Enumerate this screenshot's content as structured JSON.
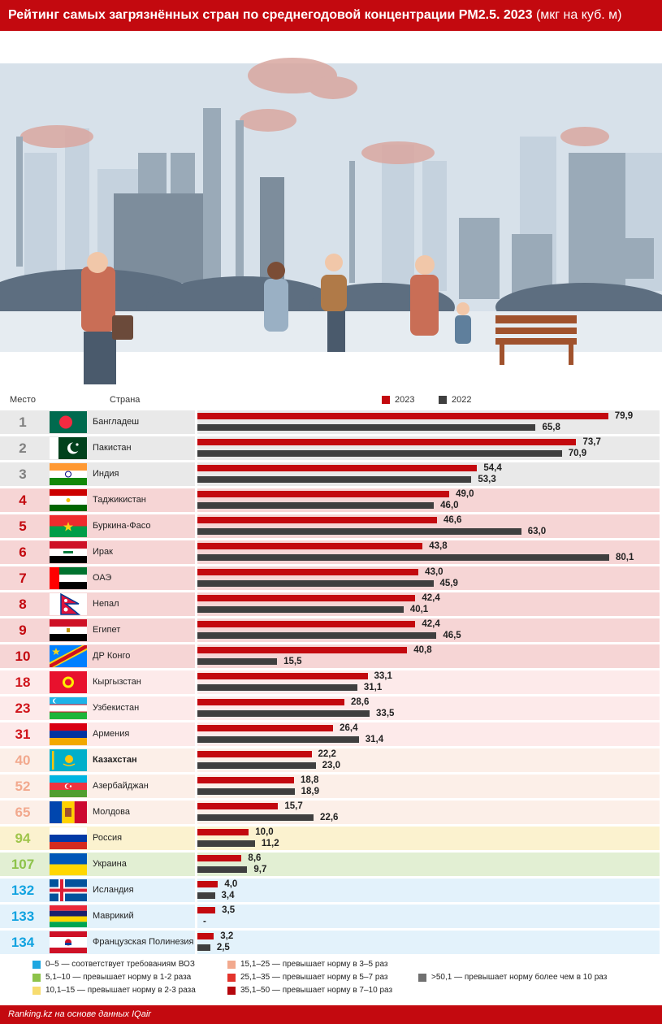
{
  "header": {
    "title": "Рейтинг самых загрязнённых стран по среднегодовой концентрации PM2.5. 2023",
    "unit": "(мкг на куб. м)"
  },
  "columns": {
    "place": "Место",
    "country": "Страна"
  },
  "colors": {
    "accent": "#c3090f",
    "bar2023": "#c3090f",
    "bar2022": "#3f3f3f"
  },
  "chart_data": {
    "type": "bar",
    "orientation": "horizontal",
    "series": [
      {
        "name": "2023",
        "values": [
          79.9,
          73.7,
          54.4,
          49.0,
          46.6,
          43.8,
          43.0,
          42.4,
          42.4,
          40.8,
          33.1,
          28.6,
          26.4,
          22.2,
          18.8,
          15.7,
          10.0,
          8.6,
          4.0,
          3.5,
          3.2
        ]
      },
      {
        "name": "2022",
        "values": [
          65.8,
          70.9,
          53.3,
          46.0,
          63.0,
          80.1,
          45.9,
          40.1,
          46.5,
          15.5,
          31.1,
          33.5,
          31.4,
          23.0,
          18.9,
          22.6,
          11.2,
          9.7,
          3.4,
          null,
          2.5
        ]
      }
    ],
    "xlim": [
      0,
      80.1
    ],
    "legend_position": "top",
    "rows": [
      {
        "rank": "1",
        "country": "Бангладеш",
        "v2023": "79,9",
        "v2022": "65,8",
        "flag": "bangladesh-flag",
        "tier": "gray"
      },
      {
        "rank": "2",
        "country": "Пакистан",
        "v2023": "73,7",
        "v2022": "70,9",
        "flag": "pakistan-flag",
        "tier": "gray"
      },
      {
        "rank": "3",
        "country": "Индия",
        "v2023": "54,4",
        "v2022": "53,3",
        "flag": "india-flag",
        "tier": "gray"
      },
      {
        "rank": "4",
        "country": "Таджикистан",
        "v2023": "49,0",
        "v2022": "46,0",
        "flag": "tajikistan-flag",
        "tier": "red"
      },
      {
        "rank": "5",
        "country": "Буркина-Фасо",
        "v2023": "46,6",
        "v2022": "63,0",
        "flag": "burkina-faso-flag",
        "tier": "red"
      },
      {
        "rank": "6",
        "country": "Ирак",
        "v2023": "43,8",
        "v2022": "80,1",
        "flag": "iraq-flag",
        "tier": "red"
      },
      {
        "rank": "7",
        "country": "ОАЭ",
        "v2023": "43,0",
        "v2022": "45,9",
        "flag": "uae-flag",
        "tier": "red"
      },
      {
        "rank": "8",
        "country": "Непал",
        "v2023": "42,4",
        "v2022": "40,1",
        "flag": "nepal-flag",
        "tier": "red"
      },
      {
        "rank": "9",
        "country": "Египет",
        "v2023": "42,4",
        "v2022": "46,5",
        "flag": "egypt-flag",
        "tier": "red"
      },
      {
        "rank": "10",
        "country": "ДР Конго",
        "v2023": "40,8",
        "v2022": "15,5",
        "flag": "dr-congo-flag",
        "tier": "red"
      },
      {
        "rank": "18",
        "country": "Кыргызстан",
        "v2023": "33,1",
        "v2022": "31,1",
        "flag": "kyrgyzstan-flag",
        "tier": "redlight"
      },
      {
        "rank": "23",
        "country": "Узбекистан",
        "v2023": "28,6",
        "v2022": "33,5",
        "flag": "uzbekistan-flag",
        "tier": "redlight"
      },
      {
        "rank": "31",
        "country": "Армения",
        "v2023": "26,4",
        "v2022": "31,4",
        "flag": "armenia-flag",
        "tier": "redlight"
      },
      {
        "rank": "40",
        "country": "Казахстан",
        "v2023": "22,2",
        "v2022": "23,0",
        "flag": "kazakhstan-flag",
        "tier": "salmon",
        "bold": true
      },
      {
        "rank": "52",
        "country": "Азербайджан",
        "v2023": "18,8",
        "v2022": "18,9",
        "flag": "azerbaijan-flag",
        "tier": "salmon"
      },
      {
        "rank": "65",
        "country": "Молдова",
        "v2023": "15,7",
        "v2022": "22,6",
        "flag": "moldova-flag",
        "tier": "salmon"
      },
      {
        "rank": "94",
        "country": "Россия",
        "v2023": "10,0",
        "v2022": "11,2",
        "flag": "russia-flag",
        "tier": "yellow"
      },
      {
        "rank": "107",
        "country": "Украина",
        "v2023": "8,6",
        "v2022": "9,7",
        "flag": "ukraine-flag",
        "tier": "green"
      },
      {
        "rank": "132",
        "country": "Исландия",
        "v2023": "4,0",
        "v2022": "3,4",
        "flag": "iceland-flag",
        "tier": "blue"
      },
      {
        "rank": "133",
        "country": "Маврикий",
        "v2023": "3,5",
        "v2022": "-",
        "flag": "mauritius-flag",
        "tier": "blue"
      },
      {
        "rank": "134",
        "country": "Французская Полинезия",
        "v2023": "3,2",
        "v2022": "2,5",
        "flag": "french-polynesia-flag",
        "tier": "blue"
      }
    ]
  },
  "tiers": {
    "gray": {
      "rank_color": "#808080",
      "bg": "#e9e9e9"
    },
    "red": {
      "rank_color": "#c3090f",
      "bg": "#f6d5d5"
    },
    "redlight": {
      "rank_color": "#d0161c",
      "bg": "#fdeaea"
    },
    "salmon": {
      "rank_color": "#f2a98e",
      "bg": "#fcefe8"
    },
    "yellow": {
      "rank_color": "#9fc54a",
      "bg": "#fbf2cf"
    },
    "green": {
      "rank_color": "#8dc34a",
      "bg": "#e2efd3"
    },
    "blue": {
      "rank_color": "#12a3e0",
      "bg": "#e3f2fb"
    }
  },
  "legend": [
    {
      "color": "#1ea7e1",
      "label": "0–5 — соответствует требованиям ВОЗ"
    },
    {
      "color": "#8dc34a",
      "label": "5,1–10 — превышает норму в 1-2 раза"
    },
    {
      "color": "#f7dc6f",
      "label": "10,1–15 — превышает норму в 2-3 раза"
    },
    {
      "color": "#f2a98e",
      "label": "15,1–25 — превышает норму в 3–5 раз"
    },
    {
      "color": "#e3342c",
      "label": "25,1–35 — превышает норму в 5–7 раз"
    },
    {
      "color": "#b5070d",
      "label": "35,1–50 — превышает норму в 7–10 раз"
    },
    {
      "color": "#707070",
      "label": ">50,1 — превышает норму более чем в 10 раз"
    }
  ],
  "footer": {
    "source": "Ranking.kz на основе данных IQair"
  }
}
